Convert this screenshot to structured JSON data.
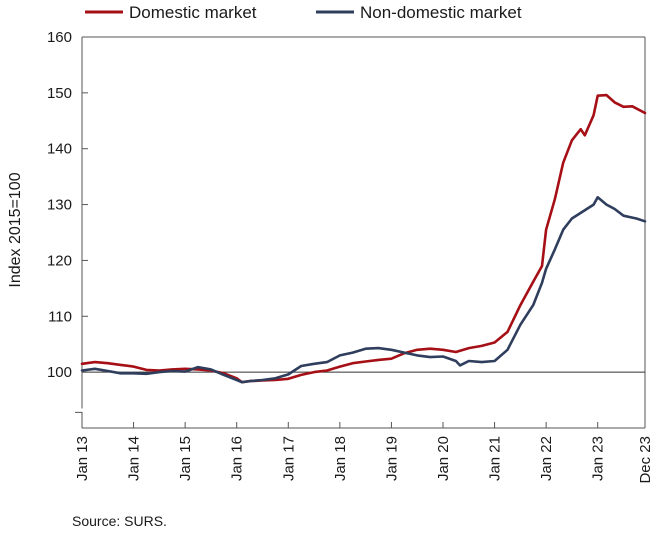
{
  "chart_data": {
    "type": "line",
    "ylabel": "Index 2015=100",
    "ylim": [
      90,
      160
    ],
    "yticks": [
      100,
      110,
      120,
      130,
      140,
      150,
      160
    ],
    "ytick_labels": [
      "100",
      "110",
      "120",
      "130",
      "140",
      "150",
      "160"
    ],
    "xlim": [
      2013.0,
      2023.917
    ],
    "xticks": [
      {
        "label": "Jan 13",
        "x": 2013.0
      },
      {
        "label": "Jan 14",
        "x": 2014.0
      },
      {
        "label": "Jan 15",
        "x": 2015.0
      },
      {
        "label": "Jan 16",
        "x": 2016.0
      },
      {
        "label": "Jan 17",
        "x": 2017.0
      },
      {
        "label": "Jan 18",
        "x": 2018.0
      },
      {
        "label": "Jan 19",
        "x": 2019.0
      },
      {
        "label": "Jan 20",
        "x": 2020.0
      },
      {
        "label": "Jan 21",
        "x": 2021.0
      },
      {
        "label": "Jan 22",
        "x": 2022.0
      },
      {
        "label": "Jan 23",
        "x": 2023.0
      },
      {
        "label": "Dec 23",
        "x": 2023.917
      }
    ],
    "reference_line": 100,
    "axis_break": true,
    "grid": false,
    "legend_position": "top",
    "series": [
      {
        "name": "Domestic market",
        "color": "#a50f15",
        "points": [
          [
            2013.0,
            101.5
          ],
          [
            2013.25,
            101.8
          ],
          [
            2013.5,
            101.6
          ],
          [
            2013.75,
            101.3
          ],
          [
            2014.0,
            101.0
          ],
          [
            2014.25,
            100.4
          ],
          [
            2014.5,
            100.3
          ],
          [
            2014.75,
            100.5
          ],
          [
            2015.0,
            100.6
          ],
          [
            2015.25,
            100.5
          ],
          [
            2015.5,
            100.3
          ],
          [
            2015.75,
            99.8
          ],
          [
            2016.0,
            98.9
          ],
          [
            2016.1,
            98.2
          ],
          [
            2016.25,
            98.4
          ],
          [
            2016.5,
            98.5
          ],
          [
            2016.75,
            98.6
          ],
          [
            2017.0,
            98.8
          ],
          [
            2017.25,
            99.5
          ],
          [
            2017.5,
            100.0
          ],
          [
            2017.75,
            100.3
          ],
          [
            2018.0,
            101.0
          ],
          [
            2018.25,
            101.6
          ],
          [
            2018.5,
            101.9
          ],
          [
            2018.75,
            102.2
          ],
          [
            2019.0,
            102.4
          ],
          [
            2019.25,
            103.4
          ],
          [
            2019.5,
            104.0
          ],
          [
            2019.75,
            104.2
          ],
          [
            2020.0,
            104.0
          ],
          [
            2020.25,
            103.6
          ],
          [
            2020.5,
            104.3
          ],
          [
            2020.75,
            104.7
          ],
          [
            2021.0,
            105.3
          ],
          [
            2021.25,
            107.2
          ],
          [
            2021.5,
            112.0
          ],
          [
            2021.75,
            116.2
          ],
          [
            2021.92,
            119.0
          ],
          [
            2022.0,
            125.5
          ],
          [
            2022.17,
            131.0
          ],
          [
            2022.33,
            137.5
          ],
          [
            2022.5,
            141.5
          ],
          [
            2022.67,
            143.5
          ],
          [
            2022.75,
            142.4
          ],
          [
            2022.92,
            146.0
          ],
          [
            2023.0,
            149.5
          ],
          [
            2023.17,
            149.6
          ],
          [
            2023.33,
            148.3
          ],
          [
            2023.5,
            147.5
          ],
          [
            2023.67,
            147.6
          ],
          [
            2023.917,
            146.4
          ]
        ]
      },
      {
        "name": "Non-domestic market",
        "color": "#2f3e5c",
        "points": [
          [
            2013.0,
            100.3
          ],
          [
            2013.25,
            100.6
          ],
          [
            2013.5,
            100.2
          ],
          [
            2013.75,
            99.8
          ],
          [
            2014.0,
            99.8
          ],
          [
            2014.25,
            99.7
          ],
          [
            2014.5,
            100.0
          ],
          [
            2014.75,
            100.2
          ],
          [
            2015.0,
            100.1
          ],
          [
            2015.25,
            100.9
          ],
          [
            2015.5,
            100.5
          ],
          [
            2015.75,
            99.5
          ],
          [
            2016.0,
            98.6
          ],
          [
            2016.1,
            98.2
          ],
          [
            2016.25,
            98.4
          ],
          [
            2016.5,
            98.6
          ],
          [
            2016.75,
            98.9
          ],
          [
            2017.0,
            99.6
          ],
          [
            2017.25,
            101.1
          ],
          [
            2017.5,
            101.5
          ],
          [
            2017.75,
            101.8
          ],
          [
            2018.0,
            103.0
          ],
          [
            2018.25,
            103.5
          ],
          [
            2018.5,
            104.2
          ],
          [
            2018.75,
            104.3
          ],
          [
            2019.0,
            104.0
          ],
          [
            2019.25,
            103.5
          ],
          [
            2019.5,
            103.0
          ],
          [
            2019.75,
            102.7
          ],
          [
            2020.0,
            102.8
          ],
          [
            2020.25,
            102.0
          ],
          [
            2020.33,
            101.2
          ],
          [
            2020.5,
            102.0
          ],
          [
            2020.75,
            101.8
          ],
          [
            2021.0,
            102.0
          ],
          [
            2021.25,
            104.0
          ],
          [
            2021.5,
            108.5
          ],
          [
            2021.75,
            112.0
          ],
          [
            2021.92,
            116.0
          ],
          [
            2022.0,
            118.5
          ],
          [
            2022.17,
            122.0
          ],
          [
            2022.33,
            125.5
          ],
          [
            2022.5,
            127.5
          ],
          [
            2022.67,
            128.5
          ],
          [
            2022.92,
            130.0
          ],
          [
            2023.0,
            131.3
          ],
          [
            2023.17,
            130.0
          ],
          [
            2023.33,
            129.2
          ],
          [
            2023.5,
            128.0
          ],
          [
            2023.75,
            127.5
          ],
          [
            2023.917,
            127.0
          ]
        ]
      }
    ]
  },
  "source_text": "Source: SURS."
}
